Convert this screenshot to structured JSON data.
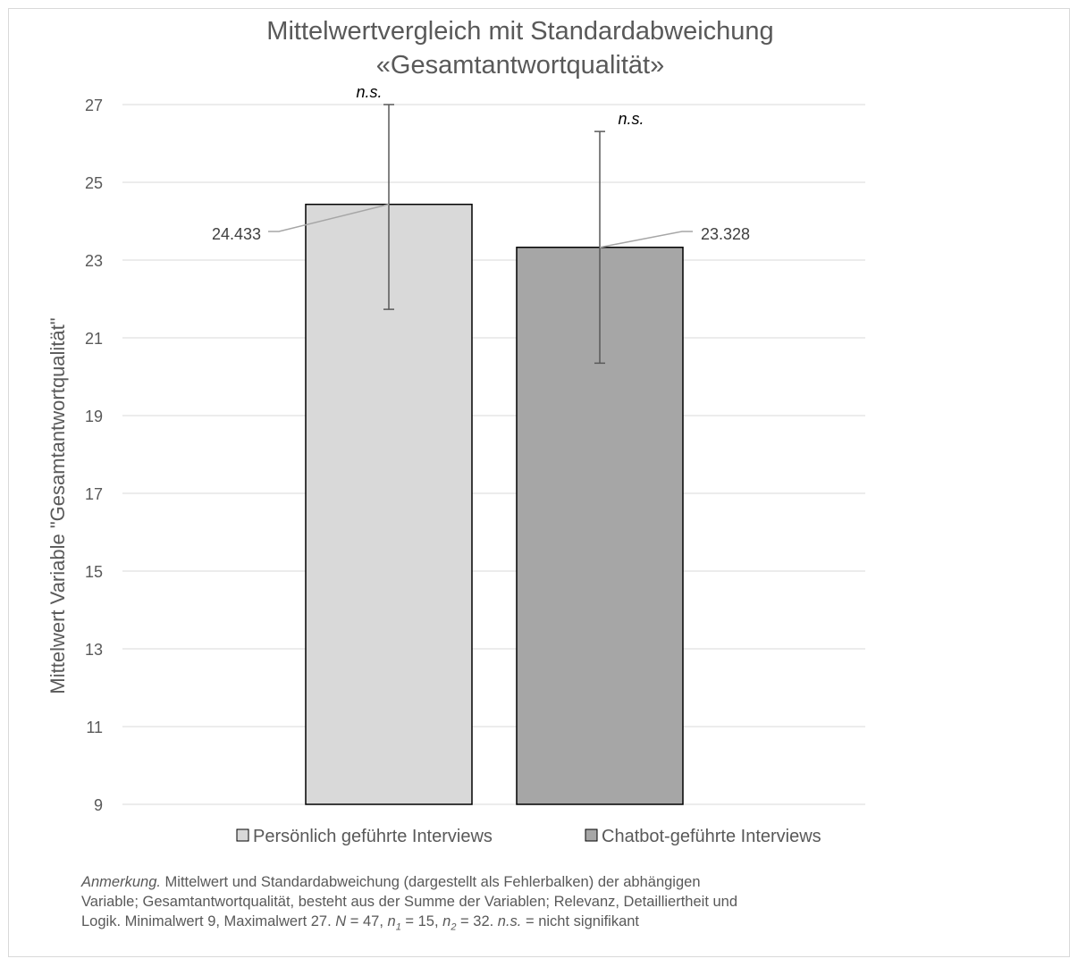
{
  "chart_data": {
    "type": "bar",
    "title_line1": "Mittelwertvergleich mit Standardabweichung",
    "title_line2": "«Gesamtantwortqualität»",
    "ylabel": "Mittelwert Variable \"Gesamtantwortqualität\"",
    "xlabel": "",
    "ylim": [
      9,
      27
    ],
    "yticks": [
      9,
      11,
      13,
      15,
      17,
      19,
      21,
      23,
      25,
      27
    ],
    "grid": true,
    "legend_position": "bottom",
    "categories": [
      "Persönlich geführte Interviews",
      "Chatbot-geführte Interviews"
    ],
    "values": [
      24.433,
      23.328
    ],
    "value_labels": [
      "24.433",
      "23.328"
    ],
    "error": [
      2.7,
      2.98
    ],
    "significance": [
      "n.s.",
      "n.s."
    ],
    "colors": [
      "#d9d9d9",
      "#a6a6a6"
    ]
  },
  "note": {
    "lead": "Anmerkung.",
    "line1": " Mittelwert und Standardabweichung (dargestellt als Fehlerbalken) der abhängigen",
    "line2": "Variable; Gesamtantwortqualität, besteht aus der Summe der Variablen; Relevanz, Detailliertheit und",
    "line3a": "Logik. Minimalwert 9, Maximalwert 27. ",
    "N": "N",
    "N_val": " = 47, ",
    "n": "n",
    "sub1": "1",
    "n1_val": " = 15, ",
    "sub2": "2",
    "n2_val": " = 32. ",
    "ns": "n.s.",
    "ns_def": " = nicht signifikant"
  }
}
